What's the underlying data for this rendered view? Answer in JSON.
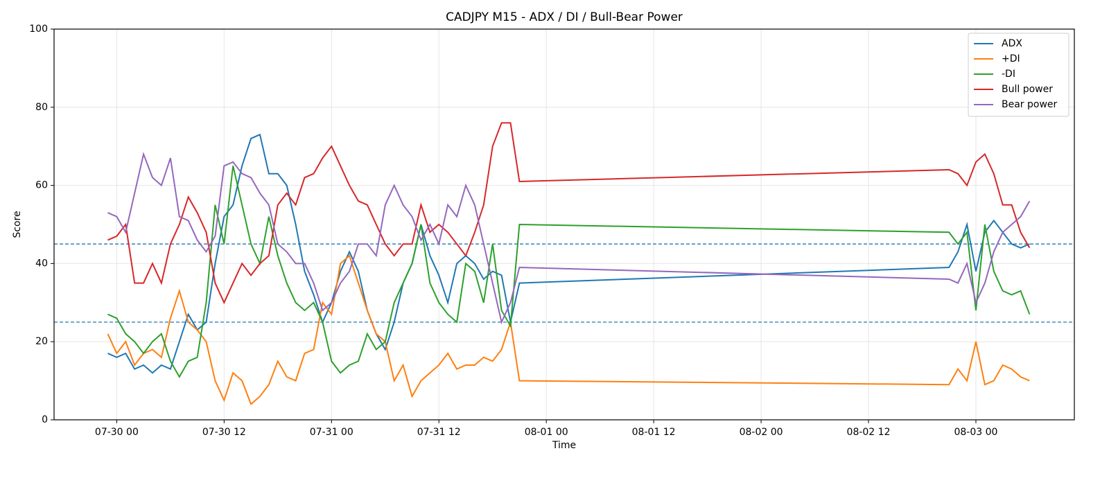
{
  "chart_data": {
    "type": "line",
    "title": "CADJPY M15 - ADX / DI / Bull-Bear Power",
    "x_label": "Time",
    "y_label": "Score",
    "x": [
      "07-29 23",
      "07-30 00",
      "07-30 01",
      "07-30 02",
      "07-30 03",
      "07-30 04",
      "07-30 05",
      "07-30 06",
      "07-30 07",
      "07-30 08",
      "07-30 09",
      "07-30 10",
      "07-30 11",
      "07-30 12",
      "07-30 13",
      "07-30 14",
      "07-30 15",
      "07-30 16",
      "07-30 17",
      "07-30 18",
      "07-30 19",
      "07-30 20",
      "07-30 21",
      "07-30 22",
      "07-30 23",
      "07-31 00",
      "07-31 01",
      "07-31 02",
      "07-31 03",
      "07-31 04",
      "07-31 05",
      "07-31 06",
      "07-31 07",
      "07-31 08",
      "07-31 09",
      "07-31 10",
      "07-31 11",
      "07-31 12",
      "07-31 13",
      "07-31 14",
      "07-31 15",
      "07-31 16",
      "07-31 17",
      "07-31 18",
      "07-31 19",
      "07-31 20",
      "07-31 21",
      "08-02 21",
      "08-02 22",
      "08-02 23",
      "08-03 00",
      "08-03 01",
      "08-03 02",
      "08-03 03",
      "08-03 04",
      "08-03 05",
      "08-03 06"
    ],
    "series": [
      {
        "name": "ADX",
        "color": "#1f77b4",
        "values": [
          17,
          16,
          17,
          13,
          14,
          12,
          14,
          13,
          20,
          27,
          23,
          25,
          40,
          52,
          55,
          65,
          72,
          73,
          63,
          63,
          60,
          50,
          38,
          32,
          25,
          30,
          38,
          43,
          38,
          28,
          22,
          18,
          25,
          35,
          40,
          50,
          42,
          37,
          30,
          40,
          42,
          40,
          36,
          38,
          37,
          25,
          35,
          39,
          43,
          50,
          38,
          48,
          51,
          48,
          45,
          44,
          45
        ]
      },
      {
        "name": "+DI",
        "color": "#ff7f0e",
        "values": [
          22,
          17,
          20,
          14,
          17,
          18,
          16,
          26,
          33,
          25,
          23,
          20,
          10,
          5,
          12,
          10,
          4,
          6,
          9,
          15,
          11,
          10,
          17,
          18,
          30,
          27,
          40,
          42,
          35,
          28,
          22,
          20,
          10,
          14,
          6,
          10,
          12,
          14,
          17,
          13,
          14,
          14,
          16,
          15,
          18,
          25,
          10,
          9,
          13,
          10,
          20,
          9,
          10,
          14,
          13,
          11,
          10
        ]
      },
      {
        "name": "-DI",
        "color": "#2ca02c",
        "values": [
          27,
          26,
          22,
          20,
          17,
          20,
          22,
          15,
          11,
          15,
          16,
          30,
          55,
          45,
          65,
          55,
          45,
          40,
          52,
          42,
          35,
          30,
          28,
          30,
          25,
          15,
          12,
          14,
          15,
          22,
          18,
          20,
          30,
          35,
          40,
          50,
          35,
          30,
          27,
          25,
          40,
          38,
          30,
          45,
          28,
          24,
          50,
          48,
          45,
          48,
          28,
          50,
          38,
          33,
          32,
          33,
          27
        ]
      },
      {
        "name": "Bull power",
        "color": "#d62728",
        "values": [
          46,
          47,
          50,
          35,
          35,
          40,
          35,
          45,
          50,
          57,
          53,
          48,
          35,
          30,
          35,
          40,
          37,
          40,
          42,
          55,
          58,
          55,
          62,
          63,
          67,
          70,
          65,
          60,
          56,
          55,
          50,
          45,
          42,
          45,
          45,
          55,
          48,
          50,
          48,
          45,
          42,
          48,
          55,
          70,
          76,
          76,
          61,
          64,
          63,
          60,
          66,
          68,
          63,
          55,
          55,
          48,
          44
        ]
      },
      {
        "name": "Bear power",
        "color": "#9467bd",
        "values": [
          53,
          52,
          48,
          58,
          68,
          62,
          60,
          67,
          52,
          51,
          46,
          43,
          47,
          65,
          66,
          63,
          62,
          58,
          55,
          45,
          43,
          40,
          40,
          35,
          28,
          30,
          35,
          38,
          45,
          45,
          42,
          55,
          60,
          55,
          52,
          46,
          50,
          45,
          55,
          52,
          60,
          55,
          45,
          35,
          25,
          30,
          39,
          36,
          35,
          40,
          30,
          35,
          43,
          48,
          50,
          52,
          56
        ]
      }
    ],
    "hlines": [
      25,
      45
    ],
    "hline_color": "#1f77b4",
    "xlim": [
      "07-29 17",
      "08-03 11"
    ],
    "xticks": [
      "07-30 00",
      "07-30 12",
      "07-31 00",
      "07-31 12",
      "08-01 00",
      "08-01 12",
      "08-02 00",
      "08-02 12",
      "08-03 00"
    ],
    "ylim": [
      0,
      100
    ],
    "yticks": [
      0,
      20,
      40,
      60,
      80,
      100
    ],
    "grid": true,
    "legend": "upper right"
  }
}
